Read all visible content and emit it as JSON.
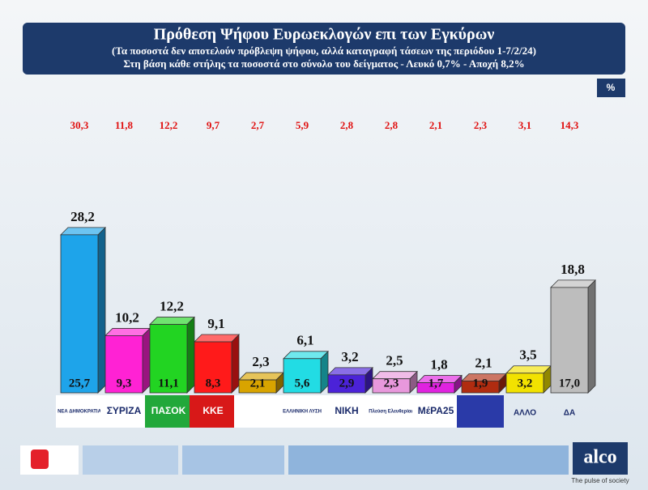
{
  "chart_data": {
    "type": "bar3d",
    "title": "Πρόθεση Ψήφου Ευρωεκλογών επι των Εγκύρων",
    "subtitle": "(Τα ποσοστά δεν αποτελούν πρόβλεψη ψήφου, αλλά καταγραφή τάσεων της περιόδου  1-7/2/24)",
    "note": "Στη βάση κάθε στήλης τα ποσοστά στο σύνολο του δείγματος - Λευκό 0,7% - Αποχή 8,2%",
    "unit": "%",
    "categories": [
      "ΝΕΑ ΔΗΜΟΚΡΑΤΙΑ",
      "ΣΥΡΙΖΑ",
      "ΠΑΣΟΚ",
      "ΚΚΕ",
      null,
      "ΕΛΛΗΝΙΚΗ ΛΥΣΗ",
      "ΝΙΚΗ",
      "Πλεύση Ελευθερίας",
      "ΜέΡΑ25",
      null,
      "ΑΛΛΟ",
      "ΔΑ"
    ],
    "colors": [
      "#1ea4ea",
      "#ff22d4",
      "#22d422",
      "#ff1a1a",
      "#d8a400",
      "#22dce4",
      "#4b22d8",
      "#e898dc",
      "#e022e0",
      "#b02c10",
      "#f2e200",
      "#bdbdbd"
    ],
    "series": [
      {
        "values": [
          28.2,
          10.2,
          12.2,
          9.1,
          2.3,
          6.1,
          3.2,
          2.5,
          1.8,
          2.1,
          3.5,
          18.8
        ],
        "value_labels": [
          "28,2",
          "10,2",
          "12,2",
          "9,1",
          "2,3",
          "6,1",
          "3,2",
          "2,5",
          "1,8",
          "2,1",
          "3,5",
          "18,8"
        ]
      },
      {
        "values": [
          25.7,
          9.3,
          11.1,
          8.3,
          2.1,
          5.6,
          2.9,
          2.3,
          1.7,
          1.9,
          3.2,
          17.0
        ],
        "value_labels": [
          "25,7",
          "9,3",
          "11,1",
          "8,3",
          "2,1",
          "5,6",
          "2,9",
          "2,3",
          "1,7",
          "1,9",
          "3,2",
          "17,0"
        ]
      },
      {
        "values": [
          30.3,
          11.8,
          12.2,
          9.7,
          2.7,
          5.9,
          2.8,
          2.8,
          2.1,
          2.3,
          3.1,
          14.3
        ],
        "value_labels": [
          "30,3",
          "11,8",
          "12,2",
          "9,7",
          "2,7",
          "5,9",
          "2,8",
          "2,8",
          "2,1",
          "2,3",
          "3,1",
          "14,3"
        ]
      }
    ],
    "brand": "alco",
    "tagline": "The pulse of society"
  }
}
